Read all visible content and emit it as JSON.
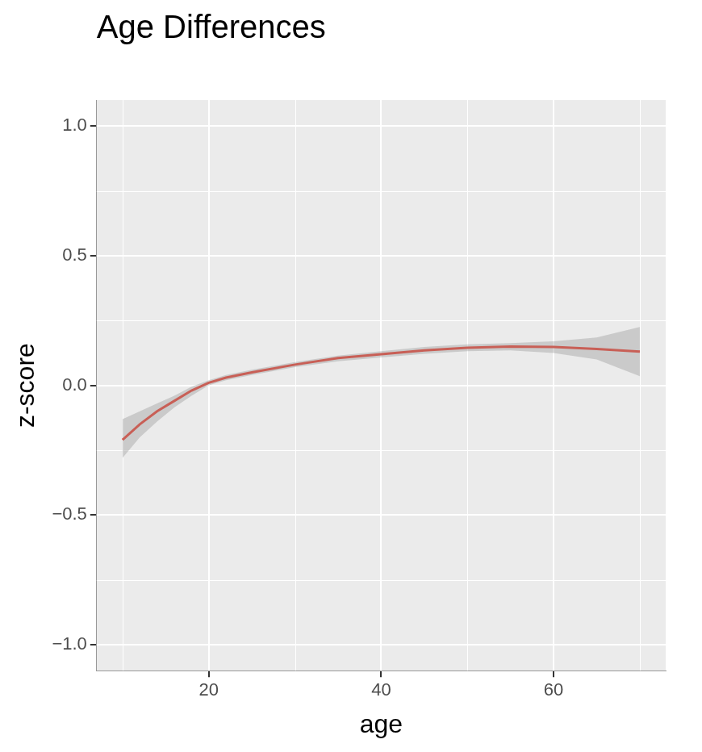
{
  "chart_data": {
    "type": "line",
    "title": "Age Differences",
    "x_label": "age",
    "y_label": "z-score",
    "x": [
      10,
      12,
      14,
      16,
      18,
      20,
      22,
      25,
      30,
      35,
      40,
      45,
      50,
      55,
      60,
      65,
      70
    ],
    "values": [
      -0.21,
      -0.15,
      -0.1,
      -0.06,
      -0.02,
      0.01,
      0.03,
      0.05,
      0.08,
      0.105,
      0.12,
      0.135,
      0.145,
      0.15,
      0.148,
      0.14,
      0.13
    ],
    "ci_lower": [
      -0.28,
      -0.2,
      -0.14,
      -0.085,
      -0.04,
      0.0,
      0.02,
      0.04,
      0.07,
      0.093,
      0.108,
      0.122,
      0.132,
      0.135,
      0.125,
      0.1,
      0.035
    ],
    "ci_upper": [
      -0.13,
      -0.1,
      -0.07,
      -0.04,
      -0.005,
      0.02,
      0.04,
      0.06,
      0.09,
      0.115,
      0.132,
      0.148,
      0.158,
      0.163,
      0.17,
      0.185,
      0.225
    ],
    "color": "#e8392b",
    "xlim": [
      7,
      73
    ],
    "xticks": [
      20,
      40,
      60
    ],
    "ylim": [
      -1.1,
      1.1
    ],
    "yticks": [
      {
        "value": -1,
        "label": "−1.0"
      },
      {
        "value": -0.5,
        "label": "−0.5"
      },
      {
        "value": 0,
        "label": "0.0"
      },
      {
        "value": 0.5,
        "label": "0.5"
      },
      {
        "value": 1,
        "label": "1.0"
      }
    ],
    "grid": true
  }
}
